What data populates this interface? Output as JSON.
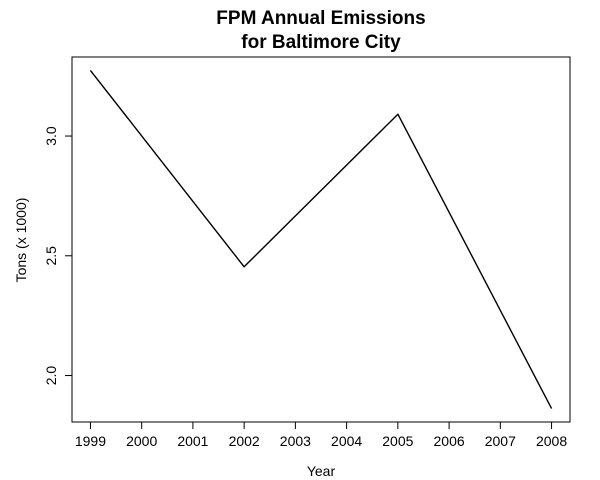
{
  "chart_data": {
    "type": "line",
    "title_lines": [
      "FPM Annual Emissions",
      "for Baltimore City"
    ],
    "xlabel": "Year",
    "ylabel": "Tons (x 1000)",
    "x": [
      1999,
      2002,
      2005,
      2008
    ],
    "y": [
      3.274,
      2.454,
      3.091,
      1.862
    ],
    "xticks": [
      "1999",
      "2000",
      "2001",
      "2002",
      "2003",
      "2004",
      "2005",
      "2006",
      "2007",
      "2008"
    ],
    "yticks": [
      "2.0",
      "2.5",
      "3.0"
    ],
    "xlim": [
      1998.64,
      2008.36
    ],
    "ylim": [
      1.806,
      3.33
    ],
    "grid": false,
    "colors": {
      "line": "#000000",
      "axes": "#000000",
      "background": "#ffffff"
    }
  }
}
